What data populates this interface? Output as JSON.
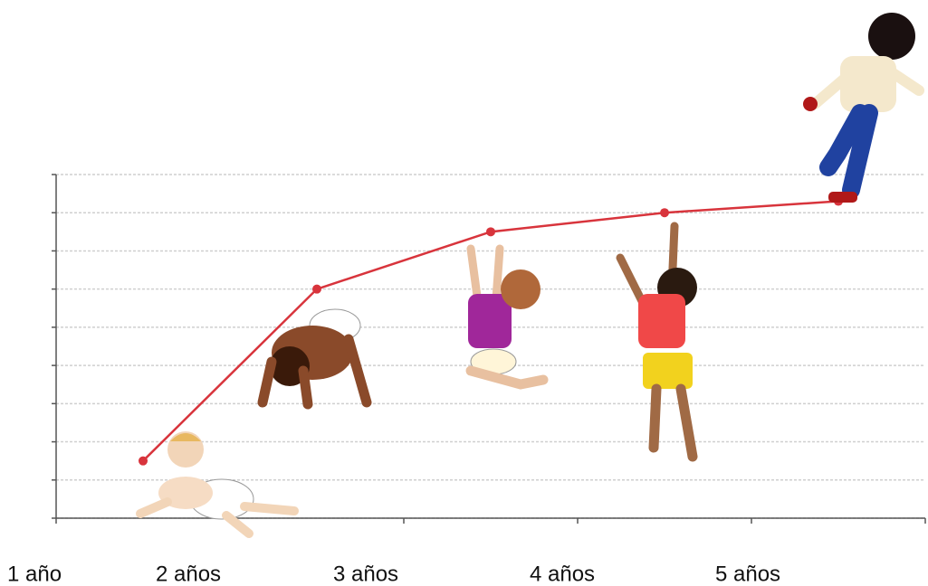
{
  "chart_data": {
    "type": "line",
    "categories": [
      "1 año",
      "2 años",
      "3 años",
      "4 años",
      "5 años"
    ],
    "series": [
      {
        "name": null,
        "color": "#d8343c",
        "values": [
          1.5,
          6.0,
          7.5,
          8.0,
          8.3
        ]
      }
    ],
    "ylim": [
      0,
      9
    ],
    "yticks": [
      0,
      1,
      2,
      3,
      4,
      5,
      6,
      7,
      8,
      9
    ],
    "grid": true
  }
}
